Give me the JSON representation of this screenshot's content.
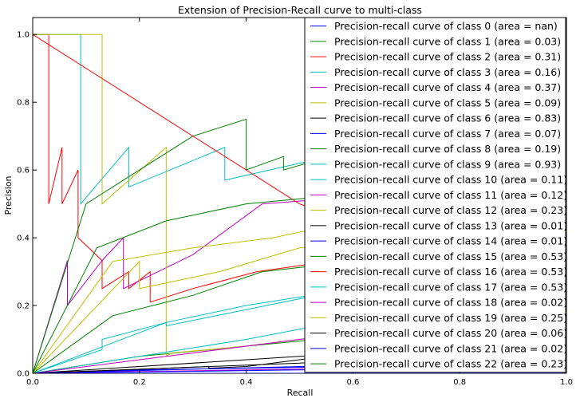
{
  "chart_data": {
    "type": "line",
    "title": "Extension of Precision-Recall curve to multi-class",
    "xlabel": "Recall",
    "ylabel": "Precision",
    "xlim": [
      0.0,
      1.0
    ],
    "ylim": [
      0.0,
      1.05
    ],
    "x_ticks": [
      "0.0",
      "0.2",
      "0.4",
      "0.6",
      "0.8",
      "1.0"
    ],
    "y_ticks": [
      "0.0",
      "0.2",
      "0.4",
      "0.6",
      "0.8",
      "1.0"
    ],
    "grid": false,
    "legend_position": "top-right",
    "series": [
      {
        "name": "Precision-recall curve of class 0 (area = nan)",
        "color": "#0000ff",
        "x": [
          0.0,
          1.0
        ],
        "y": [
          0.0,
          0.0
        ]
      },
      {
        "name": "Precision-recall curve of class 1 (area = 0.03)",
        "color": "#008000",
        "x": [
          0.0,
          0.2,
          0.4,
          0.6,
          0.8,
          1.0
        ],
        "y": [
          0.0,
          0.05,
          0.08,
          0.11,
          0.14,
          0.18
        ]
      },
      {
        "name": "Precision-recall curve of class 2 (area = 0.31)",
        "color": "#ff0000",
        "x": [
          0.0,
          0.0,
          0.03,
          0.03,
          0.055,
          0.055,
          0.085,
          0.085,
          0.13,
          0.13,
          0.18,
          0.18,
          0.22,
          0.22,
          0.3,
          0.42,
          0.6,
          0.8,
          1.0
        ],
        "y": [
          1.0,
          1.0,
          1.0,
          0.5,
          0.667,
          0.5,
          0.6,
          0.4,
          0.333,
          0.25,
          0.3,
          0.25,
          0.3,
          0.21,
          0.25,
          0.3,
          0.34,
          0.22,
          0.2
        ]
      },
      {
        "name": "Precision-recall curve of class 3 (area = 0.16)",
        "color": "#00bfbf",
        "x": [
          0.0,
          0.09,
          0.09,
          0.18,
          0.18,
          0.36,
          0.36,
          0.5,
          0.6,
          0.8,
          1.0
        ],
        "y": [
          1.0,
          1.0,
          0.5,
          0.667,
          0.55,
          0.667,
          0.57,
          0.62,
          0.65,
          0.6,
          0.55
        ]
      },
      {
        "name": "Precision-recall curve of class 4 (area = 0.37)",
        "color": "#bf00bf",
        "x": [
          0.0,
          0.065,
          0.065,
          0.13,
          0.17,
          0.17,
          0.3,
          0.43,
          0.6,
          0.8,
          1.0
        ],
        "y": [
          0.0,
          0.333,
          0.2,
          0.333,
          0.4,
          0.25,
          0.35,
          0.5,
          0.52,
          0.5,
          0.45
        ]
      },
      {
        "name": "Precision-recall curve of class 5 (area = 0.09)",
        "color": "#bfbf00",
        "x": [
          0.0,
          0.13,
          0.13,
          0.25,
          0.25,
          0.26,
          0.4,
          0.6,
          0.8,
          1.0
        ],
        "y": [
          1.0,
          1.0,
          0.5,
          0.667,
          0.05,
          0.06,
          0.08,
          0.12,
          0.15,
          0.18
        ]
      },
      {
        "name": "Precision-recall curve of class 6 (area = 0.83)",
        "color": "#000000",
        "x": [
          0.0,
          0.33,
          0.33,
          0.4,
          0.5,
          0.6,
          0.8,
          1.0
        ],
        "y": [
          0.0,
          0.02,
          0.015,
          0.02,
          0.04,
          0.06,
          0.1,
          0.15
        ]
      },
      {
        "name": "Precision-recall curve of class 7 (area = 0.07)",
        "color": "#0000ff",
        "x": [
          0.0,
          0.2,
          0.4,
          0.6,
          0.8,
          1.0
        ],
        "y": [
          0.0,
          0.01,
          0.015,
          0.02,
          0.03,
          0.04
        ]
      },
      {
        "name": "Precision-recall curve of class 8 (area = 0.19)",
        "color": "#008000",
        "x": [
          0.0,
          0.1,
          0.2,
          0.3,
          0.4,
          0.4,
          0.47,
          0.47,
          0.6,
          0.8,
          1.0
        ],
        "y": [
          0.0,
          0.5,
          0.6,
          0.7,
          0.75,
          0.6,
          0.64,
          0.6,
          0.66,
          0.6,
          0.55
        ]
      },
      {
        "name": "Precision-recall curve of class 9 (area = 0.93)",
        "color": "#00bfbf",
        "x": [
          0.0,
          0.2,
          0.4,
          0.6,
          0.8,
          1.0
        ],
        "y": [
          0.0,
          0.05,
          0.1,
          0.16,
          0.2,
          0.25
        ]
      },
      {
        "name": "Precision-recall curve of class 10 (area = 0.11)",
        "color": "#00bfbf",
        "x": [
          0.0,
          0.13,
          0.13,
          0.25,
          0.4,
          0.6,
          0.8,
          1.0
        ],
        "y": [
          0.0,
          0.07,
          0.1,
          0.15,
          0.2,
          0.25,
          0.28,
          0.3
        ]
      },
      {
        "name": "Precision-recall curve of class 11 (area = 0.12)",
        "color": "#bf00bf",
        "x": [
          0.0,
          0.3,
          0.5,
          0.7,
          1.0
        ],
        "y": [
          0.0,
          0.06,
          0.1,
          0.13,
          0.16
        ]
      },
      {
        "name": "Precision-recall curve of class 12 (area = 0.23)",
        "color": "#bfbf00",
        "x": [
          0.0,
          0.15,
          0.3,
          0.45,
          0.6,
          0.8,
          1.0
        ],
        "y": [
          0.0,
          0.33,
          0.37,
          0.4,
          0.45,
          0.47,
          0.5
        ]
      },
      {
        "name": "Precision-recall curve of class 13 (area = 0.01)",
        "color": "#000000",
        "x": [
          0.0,
          0.5,
          1.0
        ],
        "y": [
          0.0,
          0.05,
          0.1
        ]
      },
      {
        "name": "Precision-recall curve of class 14 (area = 0.01)",
        "color": "#0000ff",
        "x": [
          0.0,
          0.5,
          1.0
        ],
        "y": [
          0.0,
          0.02,
          0.04
        ]
      },
      {
        "name": "Precision-recall curve of class 15 (area = 0.53)",
        "color": "#008000",
        "x": [
          0.0,
          0.15,
          0.3,
          0.43,
          0.43,
          0.6,
          0.8,
          1.0
        ],
        "y": [
          0.0,
          0.17,
          0.23,
          0.3,
          0.3,
          0.33,
          0.36,
          0.38
        ]
      },
      {
        "name": "Precision-recall curve of class 16 (area = 0.53)",
        "color": "#ff0000",
        "x": [
          0.0,
          0.5,
          1.0
        ],
        "y": [
          1.0,
          0.5,
          0.2
        ]
      },
      {
        "name": "Precision-recall curve of class 17 (area = 0.53)",
        "color": "#00bfbf",
        "x": [
          0.0,
          0.25,
          0.25,
          0.5,
          0.75,
          1.0
        ],
        "y": [
          0.0,
          0.15,
          0.14,
          0.22,
          0.3,
          0.35
        ]
      },
      {
        "name": "Precision-recall curve of class 18 (area = 0.02)",
        "color": "#bf00bf",
        "x": [
          0.0,
          0.4,
          0.8,
          1.0
        ],
        "y": [
          0.0,
          0.01,
          0.02,
          0.03
        ]
      },
      {
        "name": "Precision-recall curve of class 19 (area = 0.25)",
        "color": "#bfbf00",
        "x": [
          0.0,
          0.2,
          0.2,
          0.35,
          0.5,
          0.75,
          1.0
        ],
        "y": [
          0.0,
          0.33,
          0.25,
          0.3,
          0.37,
          0.4,
          0.42
        ]
      },
      {
        "name": "Precision-recall curve of class 20 (area = 0.06)",
        "color": "#000000",
        "x": [
          0.0,
          0.5,
          1.0
        ],
        "y": [
          0.0,
          0.03,
          0.08
        ]
      },
      {
        "name": "Precision-recall curve of class 21 (area = 0.02)",
        "color": "#0000ff",
        "x": [
          0.0,
          0.5,
          1.0
        ],
        "y": [
          0.0,
          0.01,
          0.02
        ]
      },
      {
        "name": "Precision-recall curve of class 22 (area = 0.23)",
        "color": "#008000",
        "x": [
          0.0,
          0.12,
          0.25,
          0.4,
          0.6,
          0.8,
          1.0
        ],
        "y": [
          0.0,
          0.37,
          0.45,
          0.5,
          0.53,
          0.5,
          0.48
        ]
      }
    ]
  }
}
